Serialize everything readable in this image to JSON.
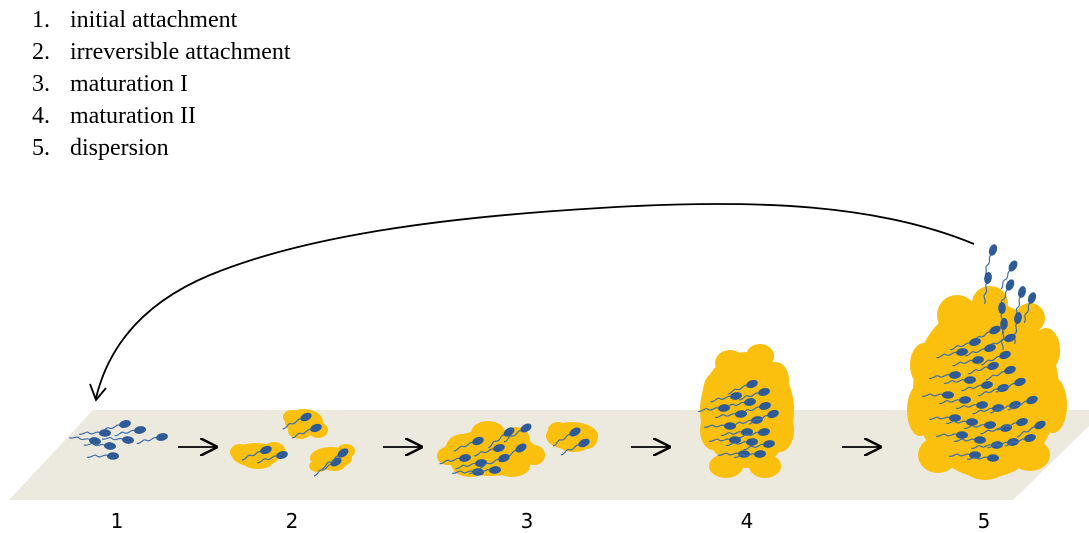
{
  "legend": [
    {
      "num": "1.",
      "text": "initial attachment"
    },
    {
      "num": "2.",
      "text": "irreversible attachment"
    },
    {
      "num": "3.",
      "text": "maturation I"
    },
    {
      "num": "4.",
      "text": "maturation II"
    },
    {
      "num": "5.",
      "text": "dispersion"
    }
  ],
  "stages": [
    "1",
    "2",
    "3",
    "4",
    "5"
  ],
  "colors": {
    "surface": "#ece9df",
    "biofilm": "#fbbf0e",
    "cell": "#2e5b95",
    "flagellum": "#3f6fad",
    "arrow": "#000000"
  }
}
